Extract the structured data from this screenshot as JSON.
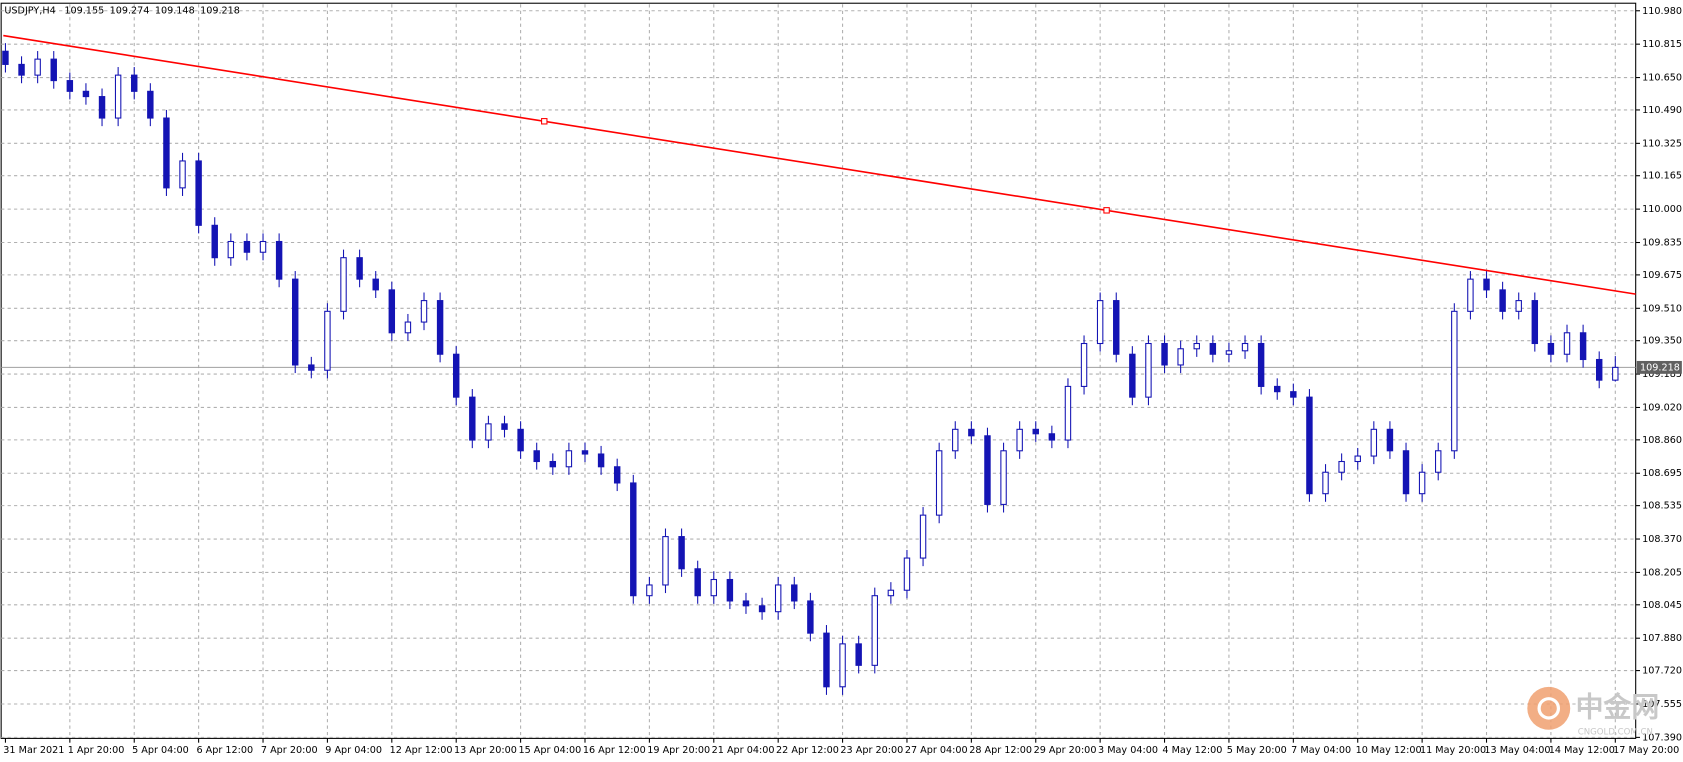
{
  "chart_data": {
    "type": "candlestick",
    "symbol": "USDJPY,H4",
    "header_values": [
      109.155,
      109.274,
      109.148,
      109.218
    ],
    "color": "#1414b4",
    "bull_fill": "#ffffff",
    "grid": true,
    "categories": [
      "31 Mar 2021",
      null,
      null,
      null,
      "1 Apr 20:00",
      null,
      null,
      null,
      "5 Apr 04:00",
      null,
      null,
      null,
      "6 Apr 12:00",
      null,
      null,
      null,
      "7 Apr 20:00",
      null,
      null,
      null,
      "9 Apr 04:00",
      null,
      null,
      null,
      "12 Apr 12:00",
      null,
      null,
      null,
      "13 Apr 20:00",
      null,
      null,
      null,
      "15 Apr 04:00",
      null,
      null,
      null,
      "16 Apr 12:00",
      null,
      null,
      null,
      "19 Apr 20:00",
      null,
      null,
      null,
      "21 Apr 04:00",
      null,
      null,
      null,
      "22 Apr 12:00",
      null,
      null,
      null,
      "23 Apr 20:00",
      null,
      null,
      null,
      "27 Apr 04:00",
      null,
      null,
      null,
      "28 Apr 12:00",
      null,
      null,
      null,
      "29 Apr 20:00",
      null,
      null,
      null,
      "3 May 04:00",
      null,
      null,
      null,
      "4 May 12:00",
      null,
      null,
      null,
      "5 May 20:00",
      null,
      null,
      null,
      "7 May 04:00",
      null,
      null,
      null,
      "10 May 12:00",
      null,
      null,
      null,
      "11 May 20:00",
      null,
      null,
      null,
      "13 May 04:00",
      null,
      null,
      null,
      "14 May 12:00",
      null,
      null,
      null,
      "17 May 20:00"
    ],
    "open": [
      110.78,
      110.715,
      110.662,
      110.741,
      110.635,
      110.582,
      110.556,
      110.45,
      110.662,
      110.582,
      110.45,
      110.105,
      110.238,
      109.92,
      109.76,
      109.84,
      109.787,
      109.84,
      109.654,
      109.23,
      109.204,
      109.495,
      109.76,
      109.654,
      109.601,
      109.389,
      109.442,
      109.548,
      109.283,
      109.071,
      108.859,
      108.939,
      108.912,
      108.806,
      108.753,
      108.727,
      108.806,
      108.79,
      108.727,
      108.647,
      108.09,
      108.143,
      108.382,
      108.223,
      108.09,
      108.17,
      108.064,
      108.04,
      108.011,
      108.143,
      108.064,
      107.905,
      107.64,
      107.852,
      107.746,
      108.09,
      108.117,
      108.276,
      108.488,
      108.806,
      108.912,
      108.88,
      108.541,
      108.806,
      108.912,
      108.89,
      108.859,
      109.124,
      109.336,
      109.548,
      109.283,
      109.071,
      109.336,
      109.23,
      109.31,
      109.336,
      109.283,
      109.3,
      109.336,
      109.124,
      109.098,
      109.071,
      108.594,
      108.7,
      108.753,
      108.78,
      108.912,
      108.806,
      108.594,
      108.7,
      108.806,
      109.495,
      109.654,
      109.601,
      109.495,
      109.548,
      109.336,
      109.283,
      109.389,
      109.257,
      109.155
    ],
    "high": [
      110.82,
      110.755,
      110.781,
      110.781,
      110.675,
      110.622,
      110.596,
      110.702,
      110.702,
      110.622,
      110.49,
      110.278,
      110.278,
      109.96,
      109.88,
      109.88,
      109.88,
      109.88,
      109.694,
      109.27,
      109.535,
      109.8,
      109.8,
      109.694,
      109.641,
      109.482,
      109.588,
      109.588,
      109.323,
      109.111,
      108.979,
      108.979,
      108.952,
      108.846,
      108.793,
      108.846,
      108.846,
      108.83,
      108.767,
      108.687,
      108.183,
      108.422,
      108.422,
      108.263,
      108.21,
      108.21,
      108.104,
      108.08,
      108.183,
      108.183,
      108.104,
      107.945,
      107.892,
      107.892,
      108.13,
      108.157,
      108.316,
      108.528,
      108.846,
      108.952,
      108.952,
      108.92,
      108.846,
      108.952,
      108.952,
      108.93,
      109.164,
      109.376,
      109.588,
      109.588,
      109.323,
      109.376,
      109.376,
      109.35,
      109.376,
      109.376,
      109.34,
      109.376,
      109.376,
      109.164,
      109.138,
      109.111,
      108.74,
      108.793,
      108.82,
      108.952,
      108.952,
      108.846,
      108.74,
      108.846,
      109.535,
      109.694,
      109.694,
      109.641,
      109.588,
      109.588,
      109.376,
      109.429,
      109.429,
      109.297,
      109.274
    ],
    "low": [
      110.675,
      110.622,
      110.622,
      110.595,
      110.542,
      110.516,
      110.41,
      110.41,
      110.542,
      110.41,
      110.065,
      110.065,
      109.88,
      109.72,
      109.72,
      109.747,
      109.747,
      109.614,
      109.19,
      109.164,
      109.164,
      109.455,
      109.614,
      109.561,
      109.349,
      109.349,
      109.402,
      109.243,
      109.031,
      108.819,
      108.819,
      108.872,
      108.766,
      108.713,
      108.687,
      108.687,
      108.75,
      108.687,
      108.607,
      108.05,
      108.05,
      108.103,
      108.183,
      108.05,
      108.05,
      108.024,
      108.0,
      107.971,
      107.971,
      108.024,
      107.865,
      107.6,
      107.6,
      107.706,
      107.706,
      108.05,
      108.077,
      108.236,
      108.448,
      108.766,
      108.84,
      108.501,
      108.501,
      108.766,
      108.85,
      108.819,
      108.819,
      109.084,
      109.296,
      109.243,
      109.031,
      109.031,
      109.19,
      109.19,
      109.27,
      109.243,
      109.243,
      109.26,
      109.084,
      109.058,
      109.031,
      108.554,
      108.554,
      108.66,
      108.713,
      108.74,
      108.766,
      108.554,
      108.554,
      108.66,
      108.766,
      109.455,
      109.561,
      109.455,
      109.455,
      109.296,
      109.243,
      109.243,
      109.217,
      109.115,
      109.148
    ],
    "close": [
      110.715,
      110.662,
      110.741,
      110.635,
      110.582,
      110.556,
      110.45,
      110.662,
      110.582,
      110.45,
      110.105,
      110.238,
      109.92,
      109.76,
      109.84,
      109.787,
      109.84,
      109.654,
      109.23,
      109.204,
      109.495,
      109.76,
      109.654,
      109.601,
      109.389,
      109.442,
      109.548,
      109.283,
      109.071,
      108.859,
      108.939,
      108.912,
      108.806,
      108.753,
      108.727,
      108.806,
      108.79,
      108.727,
      108.647,
      108.09,
      108.143,
      108.382,
      108.223,
      108.09,
      108.17,
      108.064,
      108.04,
      108.011,
      108.143,
      108.064,
      107.905,
      107.64,
      107.852,
      107.746,
      108.09,
      108.117,
      108.276,
      108.488,
      108.806,
      108.912,
      108.88,
      108.541,
      108.806,
      108.912,
      108.89,
      108.859,
      109.124,
      109.336,
      109.548,
      109.283,
      109.071,
      109.336,
      109.23,
      109.31,
      109.336,
      109.283,
      109.3,
      109.336,
      109.124,
      109.098,
      109.071,
      108.594,
      108.7,
      108.753,
      108.78,
      108.912,
      108.806,
      108.594,
      108.7,
      108.806,
      109.495,
      109.654,
      109.601,
      109.495,
      109.548,
      109.336,
      109.283,
      109.389,
      109.257,
      109.155,
      109.218
    ],
    "ylim": [
      107.385,
      111.012
    ],
    "yticks": [
      {
        "value": 110.98,
        "label": "110.980"
      },
      110.815,
      {
        "value": 110.65,
        "label": "110.650"
      },
      {
        "value": 110.49,
        "label": "110.490"
      },
      110.325,
      110.165,
      {
        "value": 110,
        "label": "110.000"
      },
      109.835,
      109.675,
      {
        "value": 109.51,
        "label": "109.510"
      },
      {
        "value": 109.35,
        "label": "109.350"
      },
      109.185,
      {
        "value": 109.02,
        "label": "109.020"
      },
      {
        "value": 108.86,
        "label": "108.860"
      },
      108.695,
      108.535,
      {
        "value": 108.37,
        "label": "108.370"
      },
      108.205,
      108.045,
      {
        "value": 107.88,
        "label": "107.880"
      },
      {
        "value": 107.72,
        "label": "107.720"
      },
      107.555,
      {
        "value": 107.39,
        "label": "107.390"
      }
    ],
    "last_price": 109.218,
    "trendline": {
      "x": [
        33.47,
        68.4
      ],
      "y": [
        110.434,
        109.994
      ],
      "color": "#ff0000"
    },
    "watermark": {
      "title": "中金网",
      "subtitle": "CNGOLD.COM.CN"
    }
  }
}
